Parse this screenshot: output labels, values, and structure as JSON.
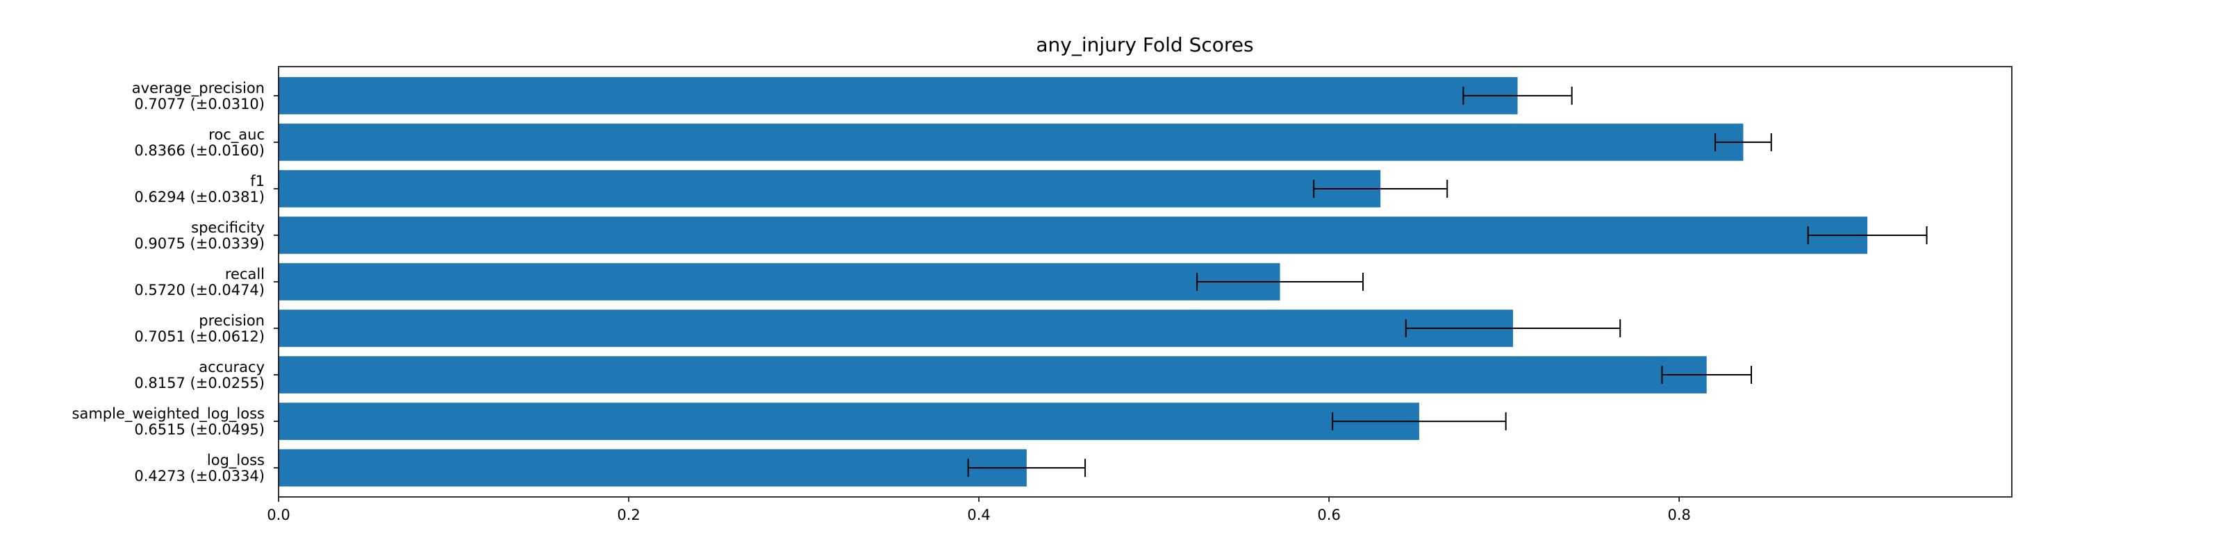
{
  "chart_data": {
    "type": "bar",
    "orientation": "horizontal",
    "title": "any_injury Fold Scores",
    "xlabel": "",
    "ylabel": "",
    "xlim": [
      0,
      0.99
    ],
    "x_ticks": [
      "0.0",
      "0.2",
      "0.4",
      "0.6",
      "0.8"
    ],
    "x_tick_values": [
      0.0,
      0.2,
      0.4,
      0.6,
      0.8
    ],
    "grid": false,
    "legend": "none",
    "bar_color": "#1f77b4",
    "error_bar_color": "#000000",
    "categories": [
      "average_precision",
      "roc_auc",
      "f1",
      "specificity",
      "recall",
      "precision",
      "accuracy",
      "sample_weighted_log_loss",
      "log_loss"
    ],
    "category_labels": [
      [
        "average_precision",
        "0.7077 (±0.0310)"
      ],
      [
        "roc_auc",
        "0.8366 (±0.0160)"
      ],
      [
        "f1",
        "0.6294 (±0.0381)"
      ],
      [
        "specificity",
        "0.9075 (±0.0339)"
      ],
      [
        "recall",
        "0.5720 (±0.0474)"
      ],
      [
        "precision",
        "0.7051 (±0.0612)"
      ],
      [
        "accuracy",
        "0.8157 (±0.0255)"
      ],
      [
        "sample_weighted_log_loss",
        "0.6515 (±0.0495)"
      ],
      [
        "log_loss",
        "0.4273 (±0.0334)"
      ]
    ],
    "values": [
      0.7077,
      0.8366,
      0.6294,
      0.9075,
      0.572,
      0.7051,
      0.8157,
      0.6515,
      0.4273
    ],
    "errors": [
      0.031,
      0.016,
      0.0381,
      0.0339,
      0.0474,
      0.0612,
      0.0255,
      0.0495,
      0.0334
    ]
  }
}
